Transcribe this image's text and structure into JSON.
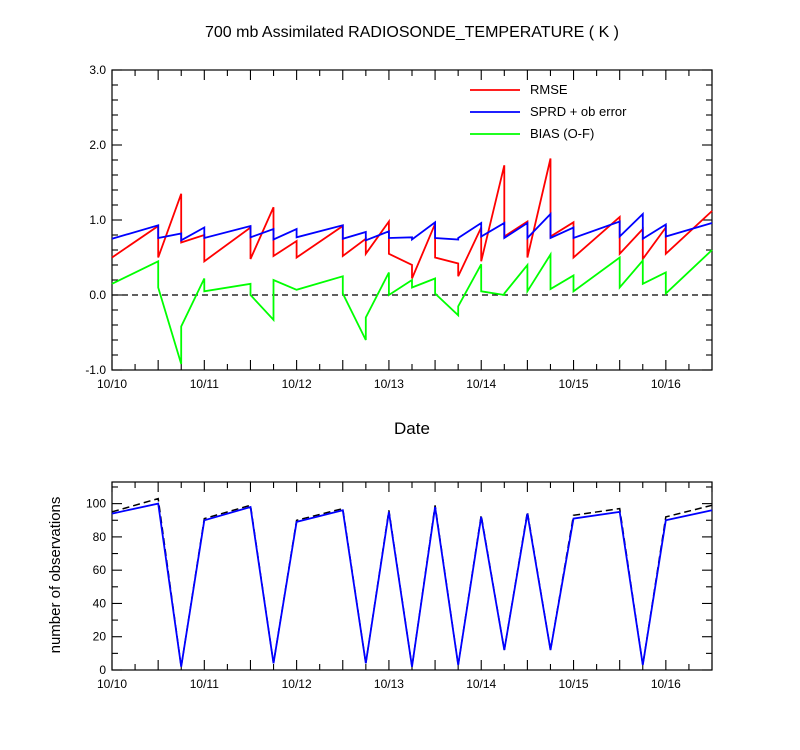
{
  "chart_data": [
    {
      "type": "line",
      "title": "700 mb Assimilated RADIOSONDE_TEMPERATURE ( K )",
      "xlabel": "Date",
      "ylabel": "",
      "x_tick_labels": [
        "10/10",
        "10/11",
        "10/12",
        "10/13",
        "10/14",
        "10/15",
        "10/16"
      ],
      "x_tick_values": [
        0,
        1,
        2,
        3,
        4,
        5,
        6
      ],
      "xlim": [
        0,
        6.5
      ],
      "ylim": [
        -1.0,
        3.0
      ],
      "y_tick_values": [
        -1.0,
        0.0,
        1.0,
        2.0,
        3.0
      ],
      "y_tick_labels": [
        "-1.0",
        "0.0",
        "1.0",
        "2.0",
        "3.0"
      ],
      "zero_line": true,
      "legend_position": "top-right",
      "series": [
        {
          "name": "RMSE",
          "color": "#ff0000",
          "x": [
            0,
            0.5,
            0.5,
            0.75,
            0.75,
            1.0,
            1.0,
            1.5,
            1.5,
            1.75,
            1.75,
            2.0,
            2.0,
            2.5,
            2.5,
            2.75,
            2.75,
            3.0,
            3.0,
            3.25,
            3.25,
            3.5,
            3.5,
            3.75,
            3.75,
            4.0,
            4.0,
            4.25,
            4.25,
            4.5,
            4.5,
            4.75,
            4.75,
            5.0,
            5.0,
            5.5,
            5.5,
            5.75,
            5.75,
            6.0,
            6.0,
            6.5
          ],
          "values": [
            0.5,
            0.92,
            0.5,
            1.35,
            0.7,
            0.8,
            0.45,
            0.9,
            0.48,
            1.17,
            0.52,
            0.72,
            0.5,
            0.92,
            0.52,
            0.75,
            0.55,
            0.98,
            0.55,
            0.4,
            0.22,
            0.95,
            0.5,
            0.42,
            0.25,
            0.9,
            0.45,
            1.73,
            0.78,
            0.98,
            0.5,
            1.82,
            0.78,
            0.97,
            0.5,
            1.04,
            0.55,
            0.88,
            0.48,
            0.9,
            0.55,
            1.12
          ]
        },
        {
          "name": "SPRD + ob error",
          "color": "#0000ff",
          "x": [
            0,
            0.5,
            0.5,
            0.75,
            0.75,
            1.0,
            1.0,
            1.5,
            1.5,
            1.75,
            1.75,
            2.0,
            2.0,
            2.5,
            2.5,
            2.75,
            2.75,
            3.0,
            3.0,
            3.25,
            3.25,
            3.5,
            3.5,
            3.75,
            3.75,
            4.0,
            4.0,
            4.25,
            4.25,
            4.5,
            4.5,
            4.75,
            4.75,
            5.0,
            5.0,
            5.5,
            5.5,
            5.75,
            5.75,
            6.0,
            6.0,
            6.5
          ],
          "values": [
            0.75,
            0.93,
            0.76,
            0.82,
            0.73,
            0.9,
            0.76,
            0.92,
            0.77,
            0.88,
            0.74,
            0.88,
            0.77,
            0.93,
            0.75,
            0.84,
            0.73,
            0.85,
            0.76,
            0.77,
            0.74,
            0.97,
            0.76,
            0.74,
            0.76,
            0.96,
            0.78,
            0.96,
            0.76,
            0.96,
            0.76,
            1.08,
            0.76,
            0.9,
            0.76,
            0.98,
            0.78,
            1.08,
            0.75,
            0.94,
            0.78,
            0.96
          ]
        },
        {
          "name": "BIAS (O-F)",
          "color": "#00ff00",
          "x": [
            0,
            0.5,
            0.5,
            0.75,
            0.75,
            1.0,
            1.0,
            1.5,
            1.5,
            1.75,
            1.75,
            2.0,
            2.0,
            2.5,
            2.5,
            2.75,
            2.75,
            3.0,
            3.0,
            3.25,
            3.25,
            3.5,
            3.5,
            3.75,
            3.75,
            4.0,
            4.0,
            4.25,
            4.25,
            4.5,
            4.5,
            4.75,
            4.75,
            5.0,
            5.0,
            5.5,
            5.5,
            5.75,
            5.75,
            6.0,
            6.0,
            6.5
          ],
          "values": [
            0.15,
            0.45,
            0.1,
            -0.92,
            -0.42,
            0.22,
            0.05,
            0.15,
            0.0,
            -0.33,
            0.2,
            0.07,
            0.07,
            0.25,
            0.02,
            -0.6,
            -0.3,
            0.3,
            0.0,
            0.2,
            0.1,
            0.22,
            0.02,
            -0.27,
            -0.15,
            0.41,
            0.05,
            0.0,
            0.02,
            0.4,
            0.05,
            0.54,
            0.08,
            0.26,
            0.05,
            0.5,
            0.1,
            0.46,
            0.15,
            0.3,
            0.02,
            0.6
          ]
        }
      ]
    },
    {
      "type": "line",
      "title": "",
      "xlabel": "",
      "ylabel": "number of observations",
      "x_tick_labels": [
        "10/10",
        "10/11",
        "10/12",
        "10/13",
        "10/14",
        "10/15",
        "10/16"
      ],
      "x_tick_values": [
        0,
        1,
        2,
        3,
        4,
        5,
        6
      ],
      "xlim": [
        0,
        6.5
      ],
      "ylim": [
        0,
        113
      ],
      "y_tick_values": [
        0,
        20,
        40,
        60,
        80,
        100
      ],
      "y_tick_labels": [
        "0",
        "20",
        "40",
        "60",
        "80",
        "100"
      ],
      "series": [
        {
          "name": "number of observations (dashed)",
          "color": "#000000",
          "dashed": true,
          "x": [
            0,
            0.5,
            0.75,
            1.0,
            1.5,
            1.75,
            2.0,
            2.5,
            2.75,
            3.0,
            3.25,
            3.5,
            3.75,
            4.0,
            4.25,
            4.5,
            4.75,
            5.0,
            5.5,
            5.75,
            6.0,
            6.5
          ],
          "values": [
            95,
            103,
            2,
            91,
            99,
            4,
            90,
            97,
            4,
            96,
            2,
            99,
            3,
            93,
            12,
            95,
            12,
            93,
            97,
            3,
            92,
            99
          ]
        },
        {
          "name": "number of observations",
          "color": "#0000ff",
          "dashed": false,
          "x": [
            0,
            0.5,
            0.75,
            1.0,
            1.5,
            1.75,
            2.0,
            2.5,
            2.75,
            3.0,
            3.25,
            3.5,
            3.75,
            4.0,
            4.25,
            4.5,
            4.75,
            5.0,
            5.5,
            5.75,
            6.0,
            6.5
          ],
          "values": [
            94,
            100,
            2,
            90,
            98,
            4,
            89,
            96,
            4,
            95,
            2,
            98,
            3,
            92,
            12,
            94,
            12,
            91,
            95,
            3,
            90,
            96
          ]
        }
      ]
    }
  ]
}
